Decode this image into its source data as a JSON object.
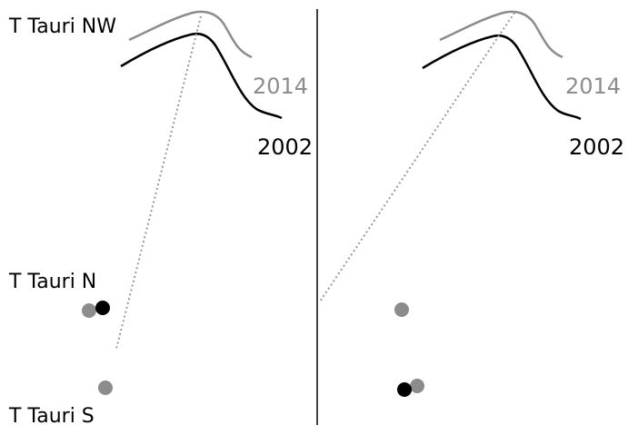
{
  "labels": {
    "nw": "T Tauri NW",
    "n": "T Tauri N",
    "s": "T Tauri S"
  },
  "epochs": {
    "recent": "2014",
    "early": "2002"
  },
  "colors": {
    "early": "#000000",
    "recent": "#8c8c8c",
    "dotted_line": "#999999",
    "divider": "#000000"
  }
}
